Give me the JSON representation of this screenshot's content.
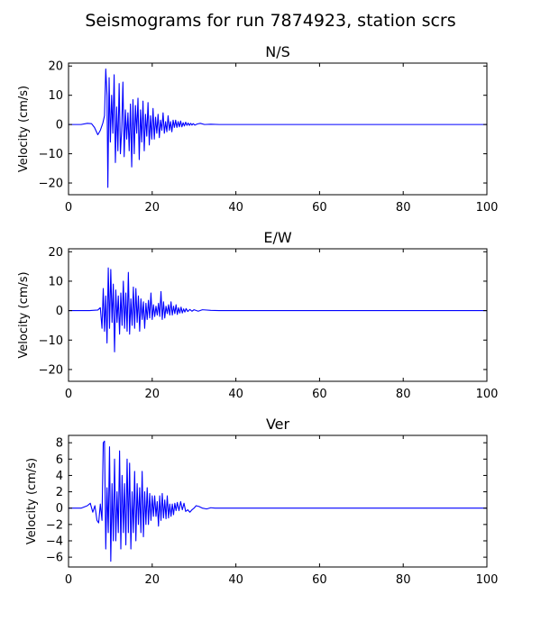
{
  "figure": {
    "title": "Seismograms for run 7874923, station scrs"
  },
  "colors": {
    "trace": "#0000ff",
    "axes": "#000000",
    "background": "#ffffff"
  },
  "chart_data": [
    {
      "type": "line",
      "title": "N/S",
      "xlabel": "",
      "ylabel": "Velocity (cm/s)",
      "xlim": [
        0,
        100
      ],
      "ylim": [
        -24,
        21
      ],
      "xticks": [
        0,
        20,
        40,
        60,
        80,
        100
      ],
      "yticks": [
        -20,
        -10,
        0,
        10,
        20
      ],
      "grid": false,
      "series": [
        {
          "x": [
            0,
            3,
            4.5,
            5.5,
            6.2,
            7,
            7.6,
            8.2,
            8.6,
            8.9,
            9.2,
            9.4,
            9.7,
            10.0,
            10.3,
            10.6,
            10.9,
            11.2,
            11.5,
            11.8,
            12.1,
            12.4,
            12.7,
            13.0,
            13.3,
            13.6,
            13.9,
            14.2,
            14.5,
            14.8,
            15.1,
            15.4,
            15.7,
            16.0,
            16.3,
            16.6,
            16.9,
            17.2,
            17.5,
            17.8,
            18.1,
            18.4,
            18.7,
            19.0,
            19.3,
            19.6,
            19.9,
            20.2,
            20.5,
            20.8,
            21.1,
            21.4,
            21.7,
            22.0,
            22.3,
            22.6,
            22.9,
            23.2,
            23.5,
            23.8,
            24.1,
            24.4,
            24.7,
            25.0,
            25.3,
            25.6,
            25.9,
            26.2,
            26.5,
            26.8,
            27.1,
            27.4,
            27.7,
            28.0,
            28.3,
            28.6,
            28.9,
            29.2,
            29.5,
            29.8,
            30.2,
            30.8,
            31.5,
            32.5,
            34,
            36,
            40,
            60,
            80,
            100
          ],
          "y": [
            0,
            0,
            0.4,
            0.3,
            -1,
            -3.5,
            -2,
            0.5,
            3,
            19,
            10,
            -21.5,
            16,
            -6,
            10,
            -3,
            17,
            -13,
            6,
            -9,
            14,
            -10,
            -2,
            14.5,
            -11,
            5,
            -5,
            4,
            -9,
            7,
            -14.5,
            8.5,
            -10,
            6.5,
            -3,
            9,
            -12,
            5,
            -6,
            8,
            -9,
            3.5,
            -4,
            7.5,
            -7,
            3,
            -5,
            5.5,
            -5,
            2.5,
            -3,
            3.5,
            -4.5,
            1.5,
            -2,
            4,
            -3,
            1,
            -2.5,
            3,
            -2,
            1,
            -2.5,
            1.5,
            -1,
            1.5,
            -1,
            1,
            -0.8,
            1.2,
            -0.8,
            0.6,
            -0.5,
            0.8,
            -0.3,
            0.5,
            -0.3,
            0.4,
            -0.2,
            0.3,
            -0.2,
            0.2,
            0.4,
            0,
            0.1,
            0,
            0,
            0,
            0,
            0
          ]
        }
      ]
    },
    {
      "type": "line",
      "title": "E/W",
      "xlabel": "",
      "ylabel": "Velocity (cm/s)",
      "xlim": [
        0,
        100
      ],
      "ylim": [
        -24,
        21
      ],
      "xticks": [
        0,
        20,
        40,
        60,
        80,
        100
      ],
      "yticks": [
        -20,
        -10,
        0,
        10,
        20
      ],
      "grid": false,
      "series": [
        {
          "x": [
            0,
            5,
            7,
            7.6,
            8.0,
            8.3,
            8.6,
            8.9,
            9.2,
            9.5,
            9.8,
            10.1,
            10.4,
            10.7,
            11.0,
            11.3,
            11.6,
            11.9,
            12.2,
            12.5,
            12.8,
            13.1,
            13.4,
            13.7,
            14.0,
            14.3,
            14.6,
            14.9,
            15.2,
            15.5,
            15.8,
            16.1,
            16.4,
            16.7,
            17.0,
            17.3,
            17.6,
            17.9,
            18.2,
            18.5,
            18.8,
            19.1,
            19.4,
            19.7,
            20.0,
            20.3,
            20.6,
            20.9,
            21.2,
            21.5,
            21.8,
            22.1,
            22.4,
            22.7,
            23.0,
            23.3,
            23.6,
            23.9,
            24.2,
            24.5,
            24.8,
            25.1,
            25.4,
            25.7,
            26.0,
            26.3,
            26.6,
            26.9,
            27.2,
            27.5,
            27.8,
            28.1,
            28.5,
            29,
            29.5,
            30,
            31,
            32,
            34,
            36,
            40,
            60,
            80,
            100
          ],
          "y": [
            0,
            0,
            0.2,
            1,
            -6,
            7.5,
            -7,
            5,
            -11,
            14.5,
            -6,
            14,
            -4,
            9,
            -14,
            7,
            -4,
            5,
            -8,
            6,
            -5,
            10,
            -6,
            6,
            -7,
            13,
            -8,
            4,
            -5,
            8,
            -6,
            7.5,
            -4,
            5,
            -7,
            4,
            -3,
            3,
            -6,
            2.5,
            -3,
            3.5,
            -2.5,
            6,
            -3,
            2,
            -2,
            1.5,
            -1.5,
            2.5,
            -2,
            6.5,
            -3,
            3,
            -2.5,
            1.5,
            -1,
            2,
            -1.5,
            3,
            -1.5,
            1.5,
            -1,
            2,
            -1.3,
            1,
            -0.8,
            1.2,
            -0.8,
            0.6,
            -0.5,
            0.7,
            -0.3,
            0.4,
            -0.2,
            0.3,
            -0.2,
            0.3,
            0.1,
            0,
            0,
            0,
            0,
            0
          ]
        }
      ]
    },
    {
      "type": "line",
      "title": "Ver",
      "xlabel": "",
      "ylabel": "Velocity (cm/s)",
      "xlim": [
        0,
        100
      ],
      "ylim": [
        -7.2,
        8.9
      ],
      "xticks": [
        0,
        20,
        40,
        60,
        80,
        100
      ],
      "yticks": [
        -6,
        -4,
        -2,
        0,
        2,
        4,
        6,
        8
      ],
      "grid": false,
      "series": [
        {
          "x": [
            0,
            3,
            4.5,
            5.2,
            5.8,
            6.3,
            6.8,
            7.2,
            7.6,
            8.0,
            8.3,
            8.6,
            8.9,
            9.2,
            9.5,
            9.8,
            10.1,
            10.4,
            10.7,
            11.0,
            11.3,
            11.6,
            11.9,
            12.2,
            12.5,
            12.8,
            13.1,
            13.4,
            13.7,
            14.0,
            14.3,
            14.6,
            14.9,
            15.2,
            15.5,
            15.8,
            16.1,
            16.4,
            16.7,
            17.0,
            17.3,
            17.6,
            17.9,
            18.2,
            18.5,
            18.8,
            19.1,
            19.4,
            19.7,
            20.0,
            20.3,
            20.6,
            20.9,
            21.2,
            21.5,
            21.8,
            22.1,
            22.4,
            22.7,
            23.0,
            23.3,
            23.6,
            23.9,
            24.2,
            24.5,
            24.8,
            25.1,
            25.4,
            25.7,
            26.0,
            26.4,
            26.8,
            27.2,
            27.6,
            28.0,
            28.5,
            29,
            29.5,
            30,
            30.5,
            31.2,
            32,
            33,
            34,
            35,
            37,
            40,
            60,
            80,
            100
          ],
          "y": [
            0,
            0,
            0.3,
            0.6,
            -0.5,
            0.3,
            -1.5,
            -1.8,
            0.5,
            -1.5,
            8,
            8.2,
            -5,
            2.5,
            -3,
            7.5,
            -6.5,
            3,
            -4,
            6,
            -4,
            2,
            -3,
            7,
            -5,
            4,
            -3,
            3,
            -4.5,
            6,
            -3,
            5.5,
            -5,
            2,
            -3,
            4.5,
            -4,
            3,
            -2,
            2.5,
            -3,
            4.5,
            -3.5,
            2,
            -2,
            2.5,
            -2,
            1.8,
            -1.5,
            1.5,
            -1,
            1.5,
            -1,
            0.8,
            -2.2,
            1.5,
            -1.5,
            1.8,
            -1.2,
            1,
            -1.3,
            1.5,
            -1.2,
            0.5,
            -1,
            0.5,
            -0.8,
            0.6,
            -0.3,
            0.7,
            -0.3,
            0.8,
            -0.2,
            0.6,
            -0.4,
            -0.2,
            -0.5,
            -0.2,
            0,
            0.3,
            0.2,
            0,
            -0.1,
            0.05,
            0,
            0,
            0,
            0,
            0,
            0
          ]
        }
      ]
    }
  ]
}
